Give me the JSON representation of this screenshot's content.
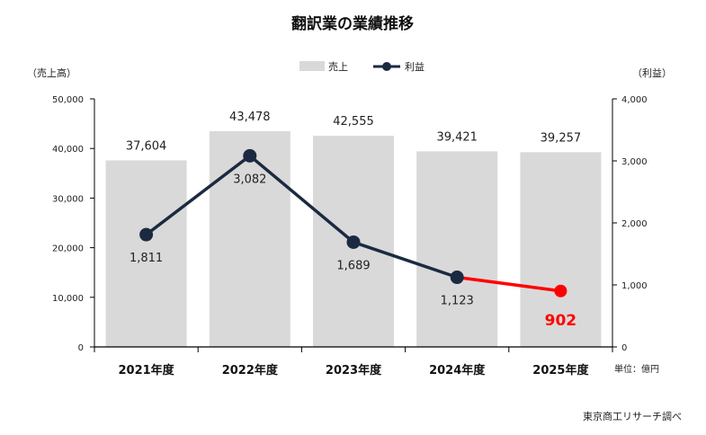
{
  "chart_data": {
    "type": "bar",
    "title": "翻訳業の業績推移",
    "categories": [
      "2021年度",
      "2022年度",
      "2023年度",
      "2024年度",
      "2025年度"
    ],
    "series": [
      {
        "name": "売上",
        "type": "bar",
        "axis": "left",
        "color": "#d9d9d9",
        "values": [
          37604,
          43478,
          42555,
          39421,
          39257
        ],
        "labels": [
          "37,604",
          "43,478",
          "42,555",
          "39,421",
          "39,257"
        ]
      },
      {
        "name": "利益",
        "type": "line",
        "axis": "right",
        "color": "#1b2a41",
        "highlight_color": "#ff0000",
        "values": [
          1811,
          3082,
          1689,
          1123,
          902
        ],
        "labels": [
          "1,811",
          "3,082",
          "1,689",
          "1,123",
          "902"
        ]
      }
    ],
    "left_axis": {
      "label": "（売上高）",
      "ylim": [
        0,
        50000
      ],
      "ticks": [
        "0",
        "10,000",
        "20,000",
        "30,000",
        "40,000",
        "50,000"
      ]
    },
    "right_axis": {
      "label": "（利益）",
      "ylim": [
        0,
        4000
      ],
      "ticks": [
        "0",
        "1,000",
        "2,000",
        "3,000",
        "4,000"
      ]
    },
    "legend": {
      "position": "top-center"
    },
    "unit_note": "単位：億円",
    "source": "東京商工リサーチ調べ",
    "grid": false
  }
}
